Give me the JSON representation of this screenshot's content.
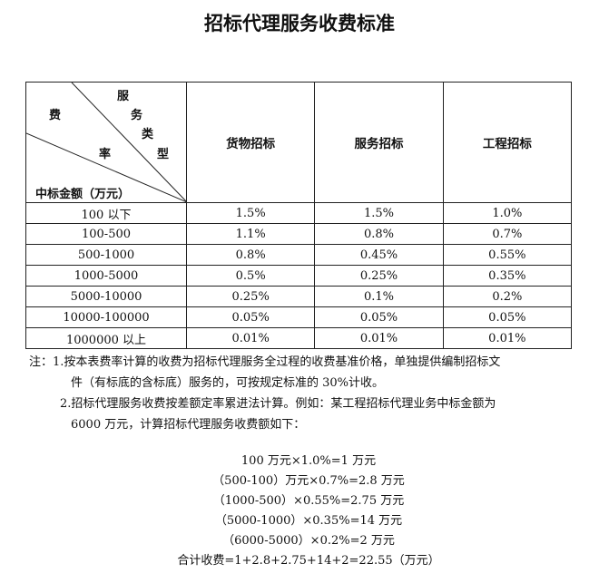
{
  "title": "招标代理服务收费标准",
  "table": {
    "corner": {
      "service_chars": [
        "服",
        "务",
        "类",
        "型"
      ],
      "fee": "费",
      "rate": "率",
      "amount": "中标金额（万元）"
    },
    "columns": [
      "货物招标",
      "服务招标",
      "工程招标"
    ],
    "rows": [
      {
        "range": "100 以下",
        "values": [
          "1.5%",
          "1.5%",
          "1.0%"
        ]
      },
      {
        "range": "100-500",
        "values": [
          "1.1%",
          "0.8%",
          "0.7%"
        ]
      },
      {
        "range": "500-1000",
        "values": [
          "0.8%",
          "0.45%",
          "0.55%"
        ]
      },
      {
        "range": "1000-5000",
        "values": [
          "0.5%",
          "0.25%",
          "0.35%"
        ]
      },
      {
        "range": "5000-10000",
        "values": [
          "0.25%",
          "0.1%",
          "0.2%"
        ]
      },
      {
        "range": "10000-100000",
        "values": [
          "0.05%",
          "0.05%",
          "0.05%"
        ]
      },
      {
        "range": "1000000 以上",
        "values": [
          "0.01%",
          "0.01%",
          "0.01%"
        ]
      }
    ]
  },
  "notes": [
    "注：1.按本表费率计算的收费为招标代理服务全过程的收费基准价格，单独提供编制招标文",
    "件（有标底的含标底）服务的，可按规定标准的 30%计收。",
    "2.招标代理服务收费按差额定率累进法计算。例如：某工程招标代理业务中标金额为",
    "6000 万元，计算招标代理服务收费额如下："
  ],
  "calculation": [
    "100 万元×1.0%=1 万元",
    "（500-100）万元×0.7%=2.8 万元",
    "（1000-500）×0.55%=2.75 万元",
    "（5000-1000）×0.35%=14 万元",
    "（6000-5000）×0.2%=2 万元",
    "合计收费=1+2.8+2.75+14+2=22.55（万元）"
  ]
}
